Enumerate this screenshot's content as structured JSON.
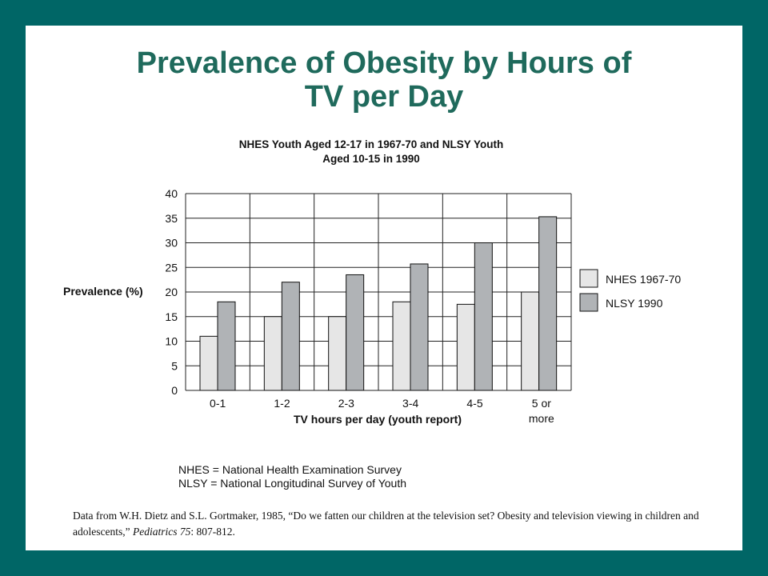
{
  "slide": {
    "title_lines": [
      "Prevalence of Obesity by Hours of",
      "TV per Day"
    ],
    "footnotes": [
      "NHES = National Health Examination Survey",
      "NLSY = National Longitudinal Survey of Youth"
    ],
    "citation": {
      "before": "Data from W.H. Dietz and S.L. Gortmaker, 1985, “Do we fatten our children at the television set? Obesity and television viewing in children and adolescents,” ",
      "journal": "Pediatrics 75",
      "after": ": 807-812."
    }
  },
  "colors": {
    "background": "#006666",
    "title": "#1f6a5c",
    "nhes_bar": "#e6e6e6",
    "nlsy_bar": "#b0b3b6"
  },
  "chart_data": {
    "type": "bar",
    "title_lines": [
      "NHES Youth Aged 12-17 in 1967-70 and NLSY Youth",
      "Aged 10-15 in 1990"
    ],
    "xlabel": "TV hours per day (youth report)",
    "ylabel": "Prevalence (%)",
    "categories": [
      [
        "0-1"
      ],
      [
        "1-2"
      ],
      [
        "2-3"
      ],
      [
        "3-4"
      ],
      [
        "4-5"
      ],
      [
        "5 or",
        "more"
      ]
    ],
    "yticks": [
      "0",
      "5",
      "10",
      "15",
      "20",
      "25",
      "30",
      "35",
      "40"
    ],
    "ylim": [
      0,
      40
    ],
    "grid": true,
    "legend_position": "right",
    "series": [
      {
        "name": "NHES 1967-70",
        "values": [
          11,
          15,
          15,
          18,
          17.5,
          20
        ]
      },
      {
        "name": "NLSY 1990",
        "values": [
          18,
          22,
          23.5,
          25.7,
          30,
          35.3
        ]
      }
    ]
  }
}
